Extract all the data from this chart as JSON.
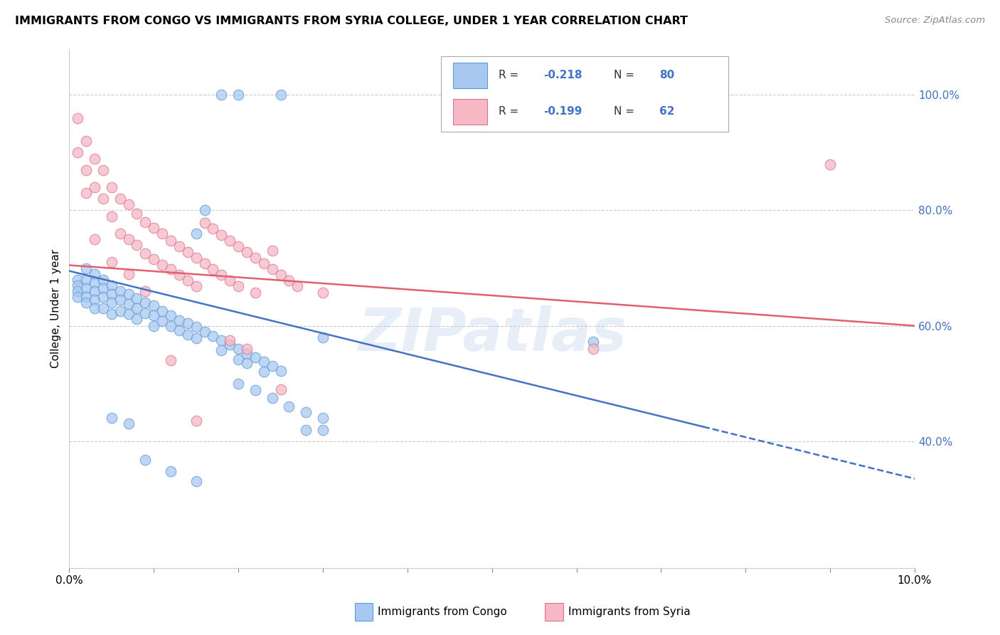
{
  "title": "IMMIGRANTS FROM CONGO VS IMMIGRANTS FROM SYRIA COLLEGE, UNDER 1 YEAR CORRELATION CHART",
  "source": "Source: ZipAtlas.com",
  "ylabel": "College, Under 1 year",
  "xlim": [
    0.0,
    0.1
  ],
  "ylim": [
    0.18,
    1.08
  ],
  "congo_color": "#a8c8f0",
  "congo_color_dark": "#5b9bd5",
  "syria_color": "#f5b8c4",
  "syria_color_dark": "#e07090",
  "congo_R": "-0.218",
  "congo_N": "80",
  "syria_R": "-0.199",
  "syria_N": "62",
  "congo_line_color": "#4472c4",
  "syria_line_color": "#e06070",
  "watermark": "ZIPatlas",
  "background_color": "#ffffff",
  "grid_color": "#cccccc",
  "congo_line_x0": 0.0,
  "congo_line_x1": 0.1,
  "congo_line_y0": 0.695,
  "congo_line_y1": 0.335,
  "congo_line_split": 0.075,
  "syria_line_x0": 0.0,
  "syria_line_x1": 0.1,
  "syria_line_y0": 0.705,
  "syria_line_y1": 0.6,
  "congo_scatter_x": [
    0.001,
    0.001,
    0.001,
    0.001,
    0.002,
    0.002,
    0.002,
    0.002,
    0.002,
    0.003,
    0.003,
    0.003,
    0.003,
    0.003,
    0.004,
    0.004,
    0.004,
    0.004,
    0.005,
    0.005,
    0.005,
    0.005,
    0.006,
    0.006,
    0.006,
    0.007,
    0.007,
    0.007,
    0.008,
    0.008,
    0.008,
    0.009,
    0.009,
    0.01,
    0.01,
    0.01,
    0.011,
    0.011,
    0.012,
    0.012,
    0.013,
    0.013,
    0.014,
    0.014,
    0.015,
    0.015,
    0.016,
    0.017,
    0.018,
    0.018,
    0.019,
    0.02,
    0.02,
    0.021,
    0.021,
    0.022,
    0.023,
    0.023,
    0.024,
    0.025,
    0.015,
    0.016,
    0.018,
    0.02,
    0.022,
    0.024,
    0.026,
    0.028,
    0.03,
    0.028,
    0.03,
    0.025,
    0.02,
    0.062,
    0.03,
    0.005,
    0.007,
    0.009,
    0.012,
    0.015
  ],
  "congo_scatter_y": [
    0.68,
    0.67,
    0.66,
    0.65,
    0.7,
    0.68,
    0.665,
    0.65,
    0.64,
    0.69,
    0.675,
    0.66,
    0.645,
    0.63,
    0.68,
    0.665,
    0.65,
    0.63,
    0.67,
    0.655,
    0.64,
    0.62,
    0.66,
    0.645,
    0.625,
    0.655,
    0.638,
    0.62,
    0.648,
    0.63,
    0.612,
    0.64,
    0.622,
    0.635,
    0.618,
    0.6,
    0.625,
    0.608,
    0.618,
    0.6,
    0.61,
    0.592,
    0.605,
    0.585,
    0.598,
    0.578,
    0.59,
    0.582,
    0.575,
    0.558,
    0.568,
    0.56,
    0.542,
    0.552,
    0.535,
    0.545,
    0.538,
    0.52,
    0.53,
    0.522,
    0.76,
    0.8,
    1.0,
    0.5,
    0.488,
    0.475,
    0.46,
    0.45,
    0.58,
    0.42,
    0.42,
    1.0,
    1.0,
    0.572,
    0.44,
    0.44,
    0.43,
    0.368,
    0.348,
    0.33
  ],
  "syria_scatter_x": [
    0.001,
    0.001,
    0.002,
    0.002,
    0.002,
    0.003,
    0.003,
    0.003,
    0.004,
    0.004,
    0.005,
    0.005,
    0.005,
    0.006,
    0.006,
    0.007,
    0.007,
    0.008,
    0.008,
    0.009,
    0.009,
    0.01,
    0.01,
    0.011,
    0.011,
    0.012,
    0.012,
    0.013,
    0.013,
    0.014,
    0.014,
    0.015,
    0.015,
    0.016,
    0.016,
    0.017,
    0.017,
    0.018,
    0.018,
    0.019,
    0.019,
    0.02,
    0.02,
    0.021,
    0.022,
    0.022,
    0.023,
    0.024,
    0.025,
    0.026,
    0.027,
    0.03,
    0.09,
    0.062,
    0.024,
    0.025,
    0.019,
    0.021,
    0.009,
    0.007,
    0.015,
    0.012
  ],
  "syria_scatter_y": [
    0.96,
    0.9,
    0.92,
    0.87,
    0.83,
    0.89,
    0.84,
    0.75,
    0.87,
    0.82,
    0.84,
    0.79,
    0.71,
    0.82,
    0.76,
    0.81,
    0.75,
    0.795,
    0.74,
    0.78,
    0.725,
    0.77,
    0.715,
    0.76,
    0.705,
    0.748,
    0.698,
    0.738,
    0.688,
    0.728,
    0.678,
    0.718,
    0.668,
    0.778,
    0.708,
    0.768,
    0.698,
    0.758,
    0.688,
    0.748,
    0.678,
    0.738,
    0.668,
    0.728,
    0.718,
    0.658,
    0.708,
    0.698,
    0.688,
    0.678,
    0.668,
    0.658,
    0.88,
    0.56,
    0.73,
    0.49,
    0.575,
    0.56,
    0.66,
    0.69,
    0.435,
    0.54
  ]
}
